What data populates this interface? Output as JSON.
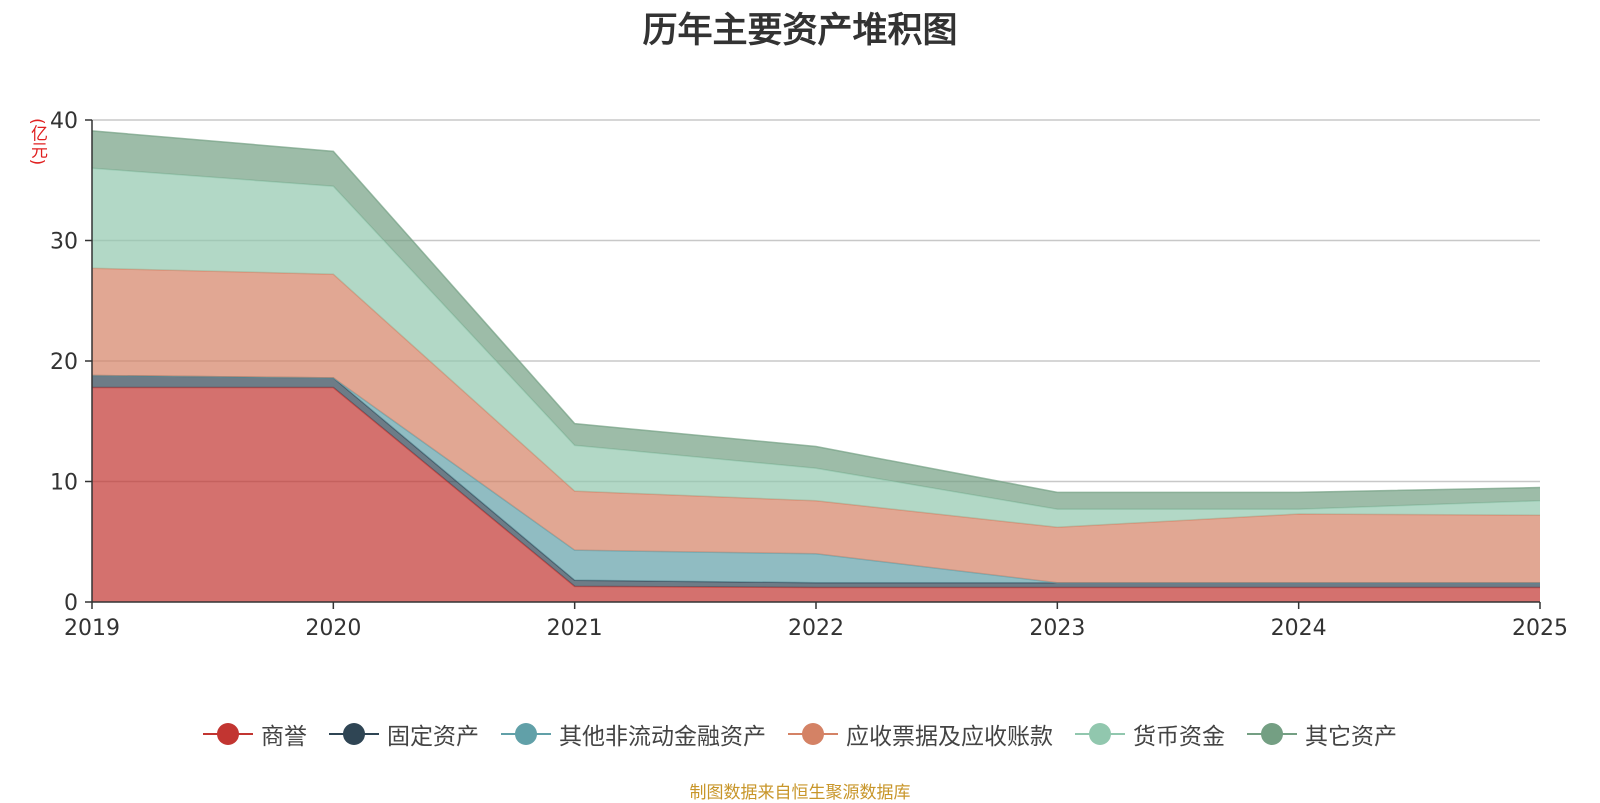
{
  "chart_data": {
    "type": "area",
    "stacked": true,
    "title": "历年主要资产堆积图",
    "ylabel": "(亿元)",
    "xlabel": "",
    "x": [
      "2019",
      "2020",
      "2021",
      "2022",
      "2023",
      "2024",
      "2025"
    ],
    "ylim": [
      0,
      40
    ],
    "yticks": [
      0,
      10,
      20,
      30,
      40
    ],
    "grid": true,
    "legend_position": "bottom",
    "series": [
      {
        "name": "商誉",
        "color": "#c23531",
        "values": [
          17.8,
          17.8,
          1.3,
          1.2,
          1.2,
          1.2,
          1.2
        ]
      },
      {
        "name": "固定资产",
        "color": "#2f4554",
        "values": [
          1.0,
          0.8,
          0.5,
          0.4,
          0.4,
          0.4,
          0.4
        ]
      },
      {
        "name": "其他非流动金融资产",
        "color": "#61a0a8",
        "values": [
          0.0,
          0.0,
          2.5,
          2.4,
          0.0,
          0.0,
          0.0
        ]
      },
      {
        "name": "应收票据及应收账款",
        "color": "#d48265",
        "values": [
          8.9,
          8.6,
          4.9,
          4.4,
          4.6,
          5.7,
          5.6
        ]
      },
      {
        "name": "货币资金",
        "color": "#91c7ae",
        "values": [
          8.3,
          7.3,
          3.8,
          2.7,
          1.5,
          0.4,
          1.2
        ]
      },
      {
        "name": "其它资产",
        "color": "#749f83",
        "values": [
          3.1,
          2.9,
          1.8,
          1.8,
          1.4,
          1.4,
          1.1
        ]
      }
    ]
  },
  "source_note": "制图数据来自恒生聚源数据库"
}
